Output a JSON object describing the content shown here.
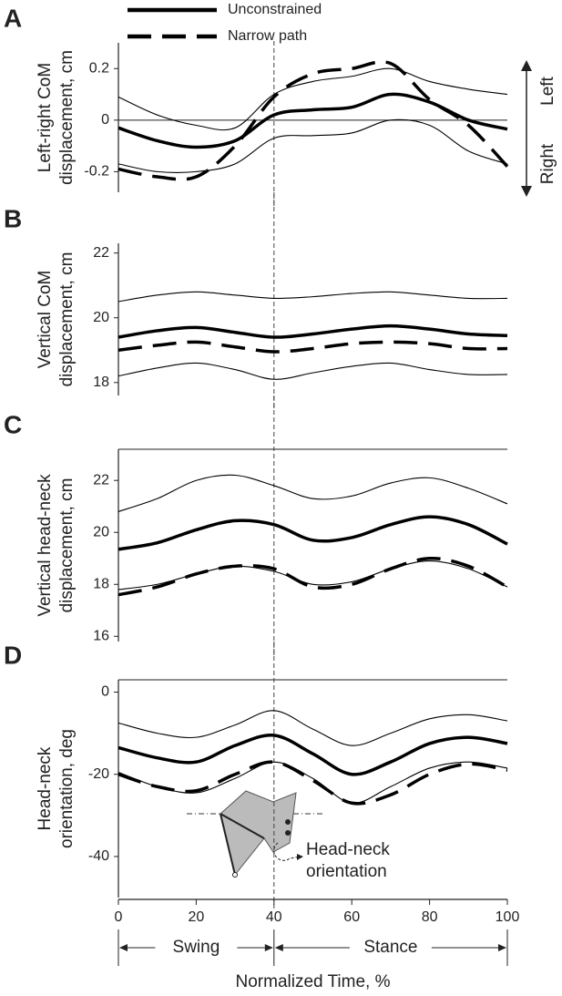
{
  "chart_data": [
    {
      "type": "line",
      "panel": "A",
      "ylabel": [
        "Left-right CoM",
        "displacement, cm"
      ],
      "side_labels": {
        "top": "Left",
        "bottom": "Right"
      },
      "x": [
        0,
        10,
        20,
        30,
        40,
        50,
        60,
        70,
        80,
        90,
        100
      ],
      "xlim": [
        0,
        100
      ],
      "ylim": [
        -0.28,
        0.3
      ],
      "yticks": [
        {
          "value": 0.2,
          "label": "0.2"
        },
        0,
        {
          "value": -0.2,
          "label": "-0.2"
        }
      ],
      "zero_line": true,
      "vline": 40,
      "series": [
        {
          "name": "Unconstrained",
          "color": "#000000",
          "style": "thick",
          "values": [
            -0.03,
            -0.08,
            -0.105,
            -0.08,
            0.02,
            0.04,
            0.05,
            0.1,
            0.07,
            0.0,
            -0.035
          ]
        },
        {
          "color": "#000000",
          "style": "thin",
          "values": [
            0.09,
            0.02,
            -0.02,
            -0.03,
            0.1,
            0.15,
            0.17,
            0.2,
            0.15,
            0.12,
            0.1
          ]
        },
        {
          "color": "#000000",
          "style": "thin",
          "values": [
            -0.17,
            -0.2,
            -0.2,
            -0.17,
            -0.07,
            -0.06,
            -0.05,
            0.0,
            -0.02,
            -0.12,
            -0.17
          ]
        },
        {
          "name": "Narrow path",
          "color": "#000000",
          "style": "dashed",
          "values": [
            -0.19,
            -0.22,
            -0.22,
            -0.1,
            0.09,
            0.18,
            0.2,
            0.22,
            0.08,
            -0.02,
            -0.18
          ]
        }
      ]
    },
    {
      "type": "line",
      "panel": "B",
      "ylabel": [
        "Vertical CoM",
        "displacement, cm"
      ],
      "x": [
        0,
        10,
        20,
        30,
        40,
        50,
        60,
        70,
        80,
        90,
        100
      ],
      "xlim": [
        0,
        100
      ],
      "ylim": [
        17.6,
        22.3
      ],
      "yticks": [
        22,
        20,
        18
      ],
      "vline": 40,
      "series": [
        {
          "color": "#000000",
          "style": "thick",
          "values": [
            19.4,
            19.6,
            19.7,
            19.55,
            19.4,
            19.5,
            19.65,
            19.75,
            19.65,
            19.5,
            19.45
          ]
        },
        {
          "color": "#000000",
          "style": "thin",
          "values": [
            20.5,
            20.7,
            20.8,
            20.7,
            20.6,
            20.65,
            20.75,
            20.8,
            20.7,
            20.6,
            20.6
          ]
        },
        {
          "color": "#000000",
          "style": "thin",
          "values": [
            18.2,
            18.45,
            18.6,
            18.4,
            18.1,
            18.3,
            18.5,
            18.6,
            18.4,
            18.25,
            18.25
          ]
        },
        {
          "color": "#000000",
          "style": "dashed",
          "values": [
            19.0,
            19.15,
            19.25,
            19.1,
            18.95,
            19.05,
            19.2,
            19.25,
            19.2,
            19.05,
            19.05
          ]
        }
      ]
    },
    {
      "type": "line",
      "panel": "C",
      "ylabel": [
        "Vertical head-neck",
        "displacement, cm"
      ],
      "x": [
        0,
        10,
        20,
        30,
        40,
        50,
        60,
        70,
        80,
        90,
        100
      ],
      "xlim": [
        0,
        100
      ],
      "ylim": [
        15.8,
        23.2
      ],
      "yticks": [
        22,
        20,
        18,
        16
      ],
      "top_line": true,
      "vline": 40,
      "series": [
        {
          "color": "#000000",
          "style": "thick",
          "values": [
            19.35,
            19.6,
            20.1,
            20.45,
            20.3,
            19.7,
            19.8,
            20.3,
            20.6,
            20.3,
            19.55
          ]
        },
        {
          "color": "#000000",
          "style": "thin",
          "values": [
            20.8,
            21.3,
            22.0,
            22.2,
            21.8,
            21.3,
            21.4,
            21.9,
            22.1,
            21.7,
            21.1
          ]
        },
        {
          "color": "#000000",
          "style": "thin",
          "values": [
            17.8,
            18.0,
            18.4,
            18.7,
            18.5,
            18.0,
            18.1,
            18.6,
            18.9,
            18.6,
            17.9
          ]
        },
        {
          "color": "#000000",
          "style": "dashed",
          "values": [
            17.6,
            17.9,
            18.4,
            18.7,
            18.6,
            17.9,
            18.0,
            18.6,
            19.0,
            18.7,
            17.9
          ]
        }
      ]
    },
    {
      "type": "line",
      "panel": "D",
      "ylabel": [
        "Head-neck",
        "orientation, deg"
      ],
      "inset_label": [
        "Head-neck",
        "orientation"
      ],
      "x": [
        0,
        10,
        20,
        30,
        40,
        50,
        60,
        70,
        80,
        90,
        100
      ],
      "xlim": [
        0,
        100
      ],
      "xticks": [
        0,
        20,
        40,
        60,
        80,
        100
      ],
      "xlabel": "Normalized Time, %",
      "phases": [
        "Swing",
        "Stance"
      ],
      "ylim": [
        -50,
        3
      ],
      "yticks": [
        0,
        -20,
        -40
      ],
      "top_line": true,
      "vline": 40,
      "series": [
        {
          "color": "#000000",
          "style": "thick",
          "values": [
            -13.5,
            -16,
            -17,
            -13,
            -10.5,
            -15,
            -20,
            -17,
            -12.5,
            -11,
            -12.5
          ]
        },
        {
          "color": "#000000",
          "style": "thin",
          "values": [
            -7.5,
            -10,
            -11,
            -8,
            -4.5,
            -9,
            -13,
            -10,
            -6.5,
            -5.5,
            -7
          ]
        },
        {
          "color": "#000000",
          "style": "thin",
          "values": [
            -19.5,
            -23,
            -24.5,
            -21,
            -17,
            -21,
            -27,
            -23,
            -18.5,
            -17,
            -18.5
          ]
        },
        {
          "color": "#000000",
          "style": "dashed",
          "values": [
            -20,
            -23,
            -24,
            -20,
            -17,
            -21.5,
            -27,
            -25,
            -20,
            -17.5,
            -19
          ]
        }
      ]
    }
  ]
}
